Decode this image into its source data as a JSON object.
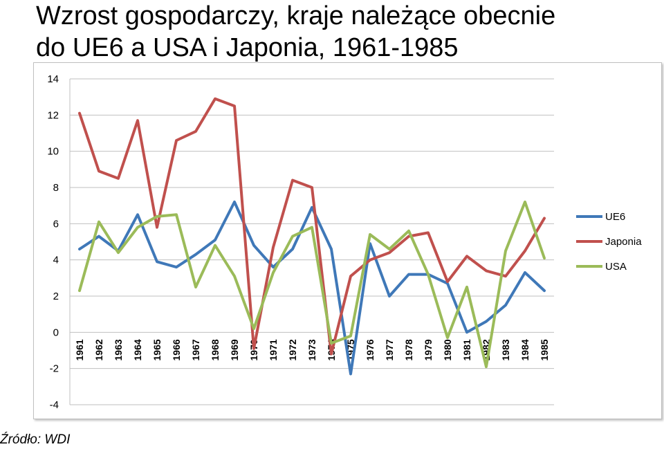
{
  "title_line1": "Wzrost gospodarczy, kraje należące obecnie",
  "title_line2": "do UE6 a USA i Japonia, 1961-1985",
  "source": "Źródło: WDI",
  "chart_data": {
    "type": "line",
    "title": "Wzrost gospodarczy, kraje należące obecnie do UE6 a USA i Japonia, 1961-1985",
    "xlabel": "",
    "ylabel": "",
    "ylim": [
      -4,
      14
    ],
    "yticks": [
      -4,
      -2,
      0,
      2,
      4,
      6,
      8,
      10,
      12,
      14
    ],
    "grid": true,
    "legend_position": "right",
    "categories": [
      "1961",
      "1962",
      "1963",
      "1964",
      "1965",
      "1966",
      "1967",
      "1968",
      "1969",
      "1970",
      "1971",
      "1972",
      "1973",
      "1974",
      "1975",
      "1976",
      "1977",
      "1978",
      "1979",
      "1980",
      "1981",
      "1982",
      "1983",
      "1984",
      "1985"
    ],
    "series": [
      {
        "name": "UE6",
        "color": "#3f78b8",
        "values": [
          4.6,
          5.3,
          4.5,
          6.5,
          3.9,
          3.6,
          4.3,
          5.1,
          7.2,
          4.8,
          3.6,
          4.6,
          6.9,
          4.6,
          -2.3,
          4.9,
          2.0,
          3.2,
          3.2,
          2.7,
          0.0,
          0.6,
          1.5,
          3.3,
          2.3
        ]
      },
      {
        "name": "Japonia",
        "color": "#c0504d",
        "values": [
          12.1,
          8.9,
          8.5,
          11.7,
          5.8,
          10.6,
          11.1,
          12.9,
          12.5,
          -0.9,
          4.7,
          8.4,
          8.0,
          -1.2,
          3.1,
          4.0,
          4.4,
          5.3,
          5.5,
          2.8,
          4.2,
          3.4,
          3.1,
          4.5,
          6.3
        ]
      },
      {
        "name": "USA",
        "color": "#9bbb59",
        "values": [
          2.3,
          6.1,
          4.4,
          5.8,
          6.4,
          6.5,
          2.5,
          4.8,
          3.1,
          0.2,
          3.3,
          5.3,
          5.8,
          -0.6,
          -0.2,
          5.4,
          4.6,
          5.6,
          3.2,
          -0.3,
          2.5,
          -1.9,
          4.5,
          7.2,
          4.1
        ]
      }
    ]
  }
}
